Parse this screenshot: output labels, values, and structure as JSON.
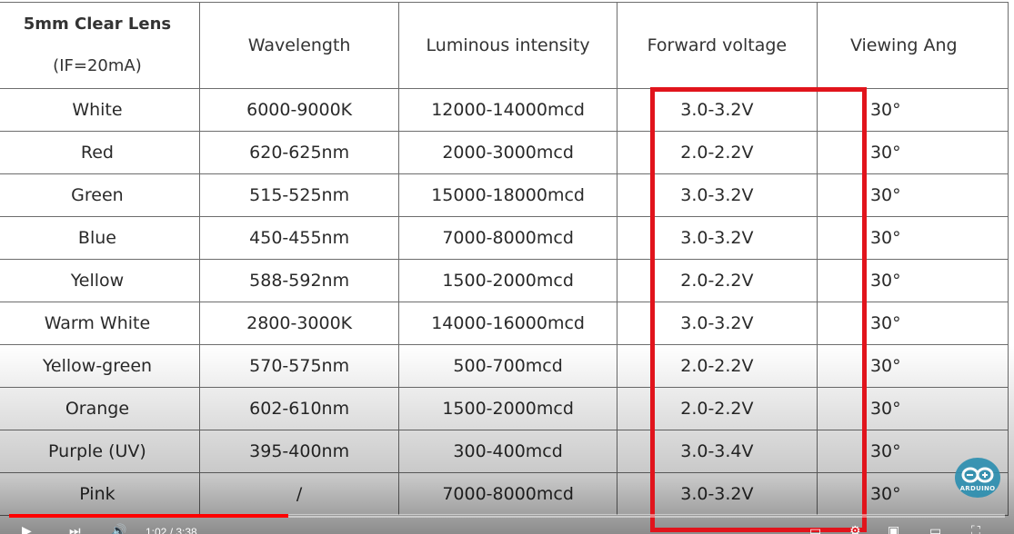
{
  "table": {
    "header": {
      "col1_title": "5mm Clear Lens",
      "col1_sub": "(IF=20mA)",
      "wavelength": "Wavelength",
      "luminous": "Luminous intensity",
      "voltage": "Forward voltage",
      "angle": "Viewing Ang"
    },
    "rows": [
      {
        "color": "White",
        "wavelength": "6000-9000K",
        "luminous": "12000-14000mcd",
        "voltage": "3.0-3.2V",
        "angle": "30°"
      },
      {
        "color": "Red",
        "wavelength": "620-625nm",
        "luminous": "2000-3000mcd",
        "voltage": "2.0-2.2V",
        "angle": "30°"
      },
      {
        "color": "Green",
        "wavelength": "515-525nm",
        "luminous": "15000-18000mcd",
        "voltage": "3.0-3.2V",
        "angle": "30°"
      },
      {
        "color": "Blue",
        "wavelength": "450-455nm",
        "luminous": "7000-8000mcd",
        "voltage": "3.0-3.2V",
        "angle": "30°"
      },
      {
        "color": "Yellow",
        "wavelength": "588-592nm",
        "luminous": "1500-2000mcd",
        "voltage": "2.0-2.2V",
        "angle": "30°"
      },
      {
        "color": "Warm White",
        "wavelength": "2800-3000K",
        "luminous": "14000-16000mcd",
        "voltage": "3.0-3.2V",
        "angle": "30°"
      },
      {
        "color": "Yellow-green",
        "wavelength": "570-575nm",
        "luminous": "500-700mcd",
        "voltage": "2.0-2.2V",
        "angle": "30°"
      },
      {
        "color": "Orange",
        "wavelength": "602-610nm",
        "luminous": "1500-2000mcd",
        "voltage": "2.0-2.2V",
        "angle": "30°"
      },
      {
        "color": "Purple (UV)",
        "wavelength": "395-400nm",
        "luminous": "300-400mcd",
        "voltage": "3.0-3.4V",
        "angle": "30°"
      },
      {
        "color": "Pink",
        "wavelength": "/",
        "luminous": "7000-8000mcd",
        "voltage": "3.0-3.2V",
        "angle": "30°"
      }
    ]
  },
  "highlight_color": "#e1141c",
  "player": {
    "progress": 0.28,
    "time": "1:02 / 3:38",
    "accent": "#ff0000",
    "icons": [
      "play-icon",
      "next-icon",
      "volume-icon",
      "subtitles-icon",
      "settings-icon",
      "miniplayer-icon",
      "theater-icon",
      "fullscreen-icon"
    ]
  },
  "watermark": {
    "text": "ARDUINO",
    "color": "#2d8fb0"
  }
}
